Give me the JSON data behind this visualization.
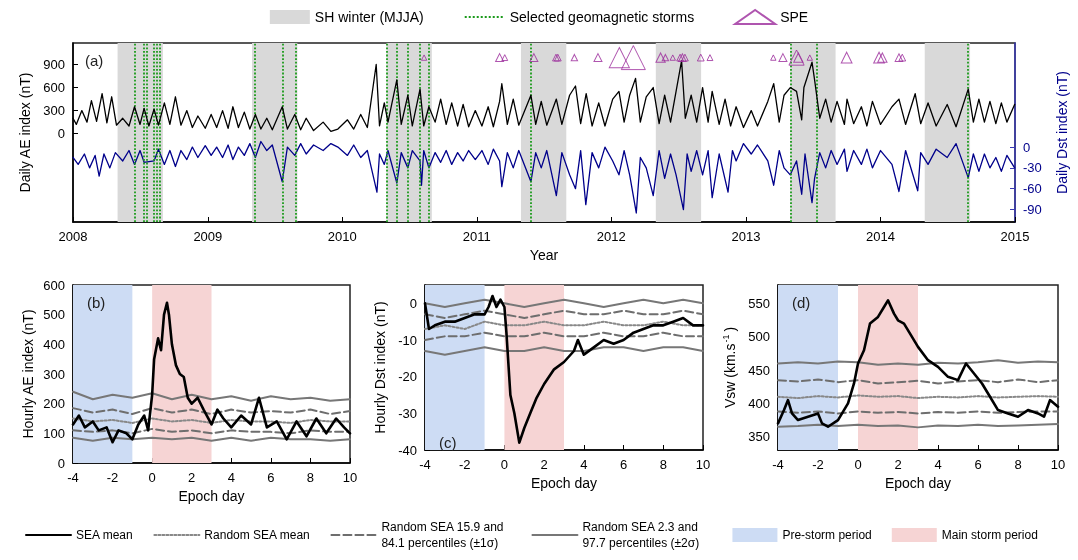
{
  "chart_data": [
    {
      "type": "line",
      "xlabel": "Year",
      "ylabel": "Daily AE index (nT)",
      "y2label": "Daily Dst index (nT)",
      "annotations": [
        "(a)"
      ],
      "xlim": [
        "2008",
        "2015"
      ],
      "xticks": [
        "2008",
        "2009",
        "2010",
        "2011",
        "2012",
        "2013",
        "2014",
        "2015"
      ],
      "ylim": [
        -1150,
        1180
      ],
      "yticks": [
        0,
        300,
        600,
        900
      ],
      "y2lim": [
        -108,
        150
      ],
      "y2ticks": [
        -90,
        -60,
        -30,
        0
      ],
      "grid": false,
      "legend": "top",
      "marker": "none",
      "line_style": "solid",
      "bands": [
        {
          "axis": "x",
          "from": "2008-05-01",
          "to": "2008-09-01",
          "label": "SH winter (MJJA)",
          "color": "#d9d9d9"
        },
        {
          "axis": "x",
          "from": "2009-05-01",
          "to": "2009-09-01",
          "color": "#d9d9d9"
        },
        {
          "axis": "x",
          "from": "2010-05-01",
          "to": "2010-09-01",
          "color": "#d9d9d9"
        },
        {
          "axis": "x",
          "from": "2011-05-01",
          "to": "2011-09-01",
          "color": "#d9d9d9"
        },
        {
          "axis": "x",
          "from": "2012-05-01",
          "to": "2012-09-01",
          "color": "#d9d9d9"
        },
        {
          "axis": "x",
          "from": "2013-05-01",
          "to": "2013-09-01",
          "color": "#d9d9d9"
        },
        {
          "axis": "x",
          "from": "2014-05-01",
          "to": "2014-09-01",
          "color": "#d9d9d9"
        }
      ],
      "ref_lines": [
        {
          "axis": "x",
          "value": "2008-06-16",
          "label": "Selected geomagnetic storms",
          "color": "#1a9a1a",
          "line_style": "dotted"
        },
        {
          "axis": "x",
          "value": "2008-07-12",
          "color": "#1a9a1a",
          "line_style": "dotted"
        },
        {
          "axis": "x",
          "value": "2008-07-20",
          "color": "#1a9a1a",
          "line_style": "dotted"
        },
        {
          "axis": "x",
          "value": "2008-08-08",
          "color": "#1a9a1a",
          "line_style": "dotted"
        },
        {
          "axis": "x",
          "value": "2008-08-16",
          "color": "#1a9a1a",
          "line_style": "dotted"
        },
        {
          "axis": "x",
          "value": "2008-08-23",
          "color": "#1a9a1a",
          "line_style": "dotted"
        },
        {
          "axis": "x",
          "value": "2009-05-07",
          "color": "#1a9a1a",
          "line_style": "dotted"
        },
        {
          "axis": "x",
          "value": "2009-07-22",
          "color": "#1a9a1a",
          "line_style": "dotted"
        },
        {
          "axis": "x",
          "value": "2009-08-28",
          "color": "#1a9a1a",
          "line_style": "dotted"
        },
        {
          "axis": "x",
          "value": "2010-05-02",
          "color": "#1a9a1a",
          "line_style": "dotted"
        },
        {
          "axis": "x",
          "value": "2010-05-28",
          "color": "#1a9a1a",
          "line_style": "dotted"
        },
        {
          "axis": "x",
          "value": "2010-06-28",
          "color": "#1a9a1a",
          "line_style": "dotted"
        },
        {
          "axis": "x",
          "value": "2010-07-31",
          "color": "#1a9a1a",
          "line_style": "dotted"
        },
        {
          "axis": "x",
          "value": "2010-08-24",
          "color": "#1a9a1a",
          "line_style": "dotted"
        },
        {
          "axis": "x",
          "value": "2011-05-28",
          "color": "#1a9a1a",
          "line_style": "dotted"
        },
        {
          "axis": "x",
          "value": "2013-05-01",
          "color": "#1a9a1a",
          "line_style": "dotted"
        },
        {
          "axis": "x",
          "value": "2013-07-13",
          "color": "#1a9a1a",
          "line_style": "dotted"
        },
        {
          "axis": "x",
          "value": "2014-08-27",
          "color": "#1a9a1a",
          "line_style": "dotted"
        }
      ],
      "series": [
        {
          "color": "#000000",
          "x": [
            "2008-01-01",
            "2008-01-10",
            "2008-01-25",
            "2008-02-08",
            "2008-02-20",
            "2008-03-05",
            "2008-03-20",
            "2008-04-02",
            "2008-04-15",
            "2008-04-28",
            "2008-05-15",
            "2008-06-01",
            "2008-06-16",
            "2008-07-01",
            "2008-07-12",
            "2008-07-25",
            "2008-08-08",
            "2008-08-20",
            "2008-09-05",
            "2008-09-20",
            "2008-10-05",
            "2008-10-20",
            "2008-11-05",
            "2008-11-20",
            "2008-12-05",
            "2008-12-25",
            "2009-01-10",
            "2009-01-25",
            "2009-02-10",
            "2009-02-25",
            "2009-03-10",
            "2009-03-25",
            "2009-04-10",
            "2009-04-25",
            "2009-05-10",
            "2009-05-25",
            "2009-06-10",
            "2009-06-25",
            "2009-07-22",
            "2009-08-05",
            "2009-08-25",
            "2009-09-10",
            "2009-09-25",
            "2009-10-15",
            "2009-11-10",
            "2009-12-01",
            "2009-12-20",
            "2010-01-15",
            "2010-02-01",
            "2010-02-20",
            "2010-03-10",
            "2010-04-03",
            "2010-04-12",
            "2010-04-25",
            "2010-05-05",
            "2010-05-29",
            "2010-06-10",
            "2010-06-28",
            "2010-07-10",
            "2010-07-31",
            "2010-08-10",
            "2010-08-24",
            "2010-09-10",
            "2010-09-25",
            "2010-10-10",
            "2010-10-25",
            "2010-11-10",
            "2010-11-25",
            "2010-12-10",
            "2010-12-28",
            "2011-01-15",
            "2011-02-01",
            "2011-02-15",
            "2011-03-04",
            "2011-03-10",
            "2011-03-25",
            "2011-04-10",
            "2011-04-25",
            "2011-05-28",
            "2011-06-10",
            "2011-06-25",
            "2011-07-10",
            "2011-08-05",
            "2011-08-20",
            "2011-09-10",
            "2011-09-26",
            "2011-10-10",
            "2011-10-25",
            "2011-11-10",
            "2011-11-28",
            "2011-12-15",
            "2012-01-05",
            "2012-01-22",
            "2012-02-05",
            "2012-02-20",
            "2012-03-07",
            "2012-03-20",
            "2012-04-05",
            "2012-04-24",
            "2012-05-10",
            "2012-05-25",
            "2012-06-10",
            "2012-06-25",
            "2012-07-10",
            "2012-07-20",
            "2012-08-05",
            "2012-08-20",
            "2012-09-05",
            "2012-09-20",
            "2012-10-01",
            "2012-10-20",
            "2012-11-05",
            "2012-11-20",
            "2012-12-05",
            "2012-12-25",
            "2013-01-15",
            "2013-02-01",
            "2013-03-01",
            "2013-03-17",
            "2013-04-01",
            "2013-04-14",
            "2013-05-01",
            "2013-05-18",
            "2013-06-01",
            "2013-06-07",
            "2013-06-29",
            "2013-07-06",
            "2013-07-20",
            "2013-08-05",
            "2013-08-20",
            "2013-09-05",
            "2013-09-25",
            "2013-10-02",
            "2013-10-20",
            "2013-11-10",
            "2013-11-25",
            "2013-12-10",
            "2014-01-01",
            "2014-02-01",
            "2014-02-20",
            "2014-03-10",
            "2014-04-05",
            "2014-04-20",
            "2014-05-10",
            "2014-06-01",
            "2014-07-01",
            "2014-07-25",
            "2014-08-27",
            "2014-09-10",
            "2014-09-25",
            "2014-10-10",
            "2014-10-25",
            "2014-11-10",
            "2014-11-25",
            "2014-12-10",
            "2014-12-31"
          ],
          "values": [
            200,
            120,
            300,
            150,
            430,
            160,
            520,
            140,
            480,
            110,
            200,
            100,
            350,
            120,
            330,
            100,
            320,
            110,
            400,
            120,
            480,
            110,
            300,
            80,
            230,
            70,
            250,
            80,
            300,
            70,
            350,
            80,
            280,
            60,
            250,
            60,
            200,
            50,
            350,
            60,
            250,
            50,
            200,
            40,
            150,
            30,
            60,
            180,
            60,
            250,
            80,
            900,
            100,
            400,
            150,
            700,
            120,
            500,
            100,
            580,
            100,
            350,
            150,
            450,
            120,
            400,
            100,
            380,
            90,
            300,
            100,
            350,
            90,
            420,
            650,
            120,
            450,
            110,
            500,
            120,
            420,
            110,
            450,
            120,
            500,
            620,
            130,
            520,
            100,
            400,
            100,
            450,
            550,
            150,
            500,
            720,
            150,
            480,
            600,
            130,
            500,
            150,
            550,
            950,
            200,
            500,
            150,
            600,
            150,
            550,
            120,
            450,
            100,
            350,
            80,
            300,
            100,
            420,
            650,
            150,
            500,
            600,
            550,
            180,
            600,
            930,
            700,
            200,
            450,
            150,
            420,
            120,
            450,
            130,
            350,
            100,
            420,
            120,
            350,
            450,
            120,
            520,
            130,
            400,
            100,
            380,
            90,
            580,
            150,
            450,
            150,
            420,
            130,
            400,
            150,
            380
          ]
        },
        {
          "color": "#00008b",
          "axis": "y2",
          "x": [
            "2008-01-01",
            "2008-01-15",
            "2008-02-01",
            "2008-02-15",
            "2008-03-01",
            "2008-03-12",
            "2008-03-25",
            "2008-04-10",
            "2008-04-25",
            "2008-05-15",
            "2008-06-01",
            "2008-06-16",
            "2008-07-01",
            "2008-07-12",
            "2008-08-08",
            "2008-08-20",
            "2008-09-05",
            "2008-09-20",
            "2008-10-05",
            "2008-10-20",
            "2008-11-05",
            "2008-11-20",
            "2008-12-05",
            "2008-12-25",
            "2009-01-10",
            "2009-01-25",
            "2009-02-10",
            "2009-02-25",
            "2009-03-10",
            "2009-03-25",
            "2009-04-10",
            "2009-04-25",
            "2009-05-10",
            "2009-05-25",
            "2009-06-10",
            "2009-06-25",
            "2009-07-22",
            "2009-08-05",
            "2009-08-25",
            "2009-09-10",
            "2009-09-25",
            "2009-10-15",
            "2009-11-10",
            "2009-12-01",
            "2009-12-20",
            "2010-01-15",
            "2010-02-01",
            "2010-02-20",
            "2010-03-10",
            "2010-04-05",
            "2010-04-12",
            "2010-04-25",
            "2010-05-05",
            "2010-05-29",
            "2010-06-10",
            "2010-06-28",
            "2010-07-10",
            "2010-07-31",
            "2010-08-04",
            "2010-08-10",
            "2010-08-24",
            "2010-09-10",
            "2010-09-25",
            "2010-10-10",
            "2010-10-25",
            "2010-11-10",
            "2010-11-25",
            "2010-12-10",
            "2010-12-28",
            "2011-01-15",
            "2011-02-01",
            "2011-02-15",
            "2011-03-04",
            "2011-03-10",
            "2011-03-25",
            "2011-04-10",
            "2011-04-25",
            "2011-05-28",
            "2011-06-10",
            "2011-06-25",
            "2011-07-10",
            "2011-08-05",
            "2011-08-20",
            "2011-09-10",
            "2011-09-26",
            "2011-10-10",
            "2011-10-24",
            "2011-11-10",
            "2011-11-28",
            "2011-12-15",
            "2012-01-05",
            "2012-01-22",
            "2012-02-05",
            "2012-02-20",
            "2012-03-09",
            "2012-03-20",
            "2012-04-05",
            "2012-04-24",
            "2012-05-10",
            "2012-05-25",
            "2012-06-10",
            "2012-06-25",
            "2012-07-15",
            "2012-07-25",
            "2012-08-05",
            "2012-08-20",
            "2012-09-05",
            "2012-09-20",
            "2012-10-01",
            "2012-10-20",
            "2012-11-13",
            "2012-11-25",
            "2012-12-05",
            "2012-12-25",
            "2013-01-15",
            "2013-02-01",
            "2013-03-01",
            "2013-03-17",
            "2013-04-01",
            "2013-04-14",
            "2013-05-01",
            "2013-05-18",
            "2013-06-01",
            "2013-06-10",
            "2013-06-29",
            "2013-07-06",
            "2013-07-20",
            "2013-08-05",
            "2013-08-20",
            "2013-09-05",
            "2013-09-25",
            "2013-10-02",
            "2013-10-20",
            "2013-11-10",
            "2013-11-25",
            "2013-12-10",
            "2014-01-01",
            "2014-02-01",
            "2014-02-20",
            "2014-03-10",
            "2014-04-12",
            "2014-04-20",
            "2014-05-10",
            "2014-06-01",
            "2014-07-01",
            "2014-07-25",
            "2014-08-27",
            "2014-09-10",
            "2014-09-25",
            "2014-10-10",
            "2014-10-25",
            "2014-11-10",
            "2014-11-25",
            "2014-12-10",
            "2014-12-31"
          ],
          "values": [
            -15,
            -25,
            -10,
            -30,
            -12,
            -42,
            -10,
            -30,
            -8,
            -20,
            -5,
            -25,
            -5,
            -22,
            -20,
            -3,
            -25,
            -5,
            -28,
            -5,
            -18,
            0,
            -15,
            2,
            -12,
            0,
            -15,
            3,
            -18,
            0,
            -12,
            5,
            -15,
            8,
            -5,
            3,
            -50,
            0,
            -12,
            5,
            -10,
            3,
            -5,
            5,
            0,
            -12,
            3,
            -15,
            -5,
            -65,
            -10,
            -25,
            -5,
            -52,
            -8,
            -30,
            -5,
            -20,
            -55,
            -5,
            -30,
            -8,
            -22,
            -5,
            -25,
            -8,
            -20,
            -5,
            -18,
            -5,
            -25,
            -3,
            -20,
            -57,
            -8,
            -30,
            -5,
            -50,
            -8,
            -30,
            -5,
            -70,
            -8,
            -40,
            -60,
            -5,
            -83,
            -8,
            -30,
            0,
            -20,
            -40,
            -5,
            -40,
            -95,
            -15,
            -30,
            -70,
            -5,
            -45,
            -10,
            -40,
            -90,
            -10,
            -35,
            -5,
            -40,
            -5,
            -73,
            -10,
            -65,
            -5,
            -20,
            5,
            -10,
            3,
            -20,
            -55,
            -5,
            -30,
            -40,
            -20,
            -68,
            -10,
            -80,
            -45,
            -8,
            -30,
            -5,
            -25,
            -3,
            -35,
            -5,
            -25,
            -3,
            -30,
            -5,
            -25,
            -64,
            -5,
            -63,
            -8,
            -25,
            -3,
            -15,
            5,
            -44,
            -10,
            -35,
            -10,
            -30,
            -15,
            -35,
            -12,
            -30
          ]
        },
        {
          "name": "SPE",
          "type": "bubble",
          "marker": "triangle",
          "color": "#9b2a9b",
          "x": [
            "2010-08-11",
            "2011-03-04",
            "2011-03-18",
            "2011-06-05",
            "2011-08-04",
            "2011-08-09",
            "2011-09-23",
            "2011-11-26",
            "2012-01-23",
            "2012-03-01",
            "2012-05-14",
            "2012-05-27",
            "2012-06-16",
            "2012-07-06",
            "2012-07-12",
            "2012-07-19",
            "2012-08-31",
            "2012-09-25",
            "2013-03-16",
            "2013-04-11",
            "2013-05-18",
            "2013-05-23",
            "2013-06-23",
            "2013-10-01",
            "2013-12-28",
            "2014-01-06",
            "2014-02-20",
            "2014-03-01"
          ],
          "values": [
            990,
            990,
            990,
            990,
            990,
            990,
            990,
            990,
            990,
            990,
            990,
            990,
            990,
            990,
            990,
            990,
            990,
            990,
            990,
            990,
            990,
            990,
            990,
            990,
            990,
            990,
            990,
            990
          ],
          "sizes": [
            0.05,
            0.11,
            0.06,
            0.11,
            0.08,
            0.08,
            0.07,
            0.11,
            0.7,
            1,
            0.15,
            0.07,
            0.05,
            0.08,
            0.1,
            0.08,
            0.08,
            0.06,
            0.05,
            0.11,
            0.4,
            0.15,
            0.05,
            0.2,
            0.2,
            0.15,
            0.1,
            0.08
          ]
        }
      ]
    },
    {
      "type": "line",
      "xlabel": "Epoch day",
      "ylabel": "Hourly AE index (nT)",
      "annotations": [
        "(b)"
      ],
      "xlim": [
        -4,
        10
      ],
      "xticks": [
        -4,
        -2,
        0,
        2,
        4,
        6,
        8,
        10
      ],
      "ylim": [
        0,
        600
      ],
      "yticks": [
        0,
        100,
        200,
        300,
        400,
        500,
        600
      ],
      "grid": false,
      "legend": "bottom",
      "marker": "none",
      "x": [
        -4,
        -3,
        -2,
        -1,
        0,
        1,
        2,
        3,
        4,
        5,
        6,
        7,
        8,
        9,
        10
      ],
      "bands": [
        {
          "axis": "x",
          "from": -4,
          "to": -1,
          "label": "Pre-storm period",
          "color": "#cddcf4"
        },
        {
          "axis": "x",
          "from": 0,
          "to": 3,
          "label": "Main storm period",
          "color": "#f6d4d4"
        }
      ],
      "series": [
        {
          "name": "SEA mean",
          "color": "#000000",
          "line_style": "solid",
          "x": [
            -4,
            -3.7,
            -3.4,
            -3,
            -2.7,
            -2.3,
            -2,
            -1.7,
            -1.3,
            -1,
            -0.7,
            -0.4,
            -0.2,
            0,
            0.1,
            0.3,
            0.45,
            0.6,
            0.75,
            0.85,
            1,
            1.2,
            1.4,
            1.6,
            1.8,
            2,
            2.3,
            2.6,
            3,
            3.3,
            3.6,
            4,
            4.5,
            5,
            5.4,
            5.8,
            6.3,
            6.8,
            7.3,
            7.8,
            8.3,
            8.8,
            9.3,
            9.7,
            10
          ],
          "values": [
            130,
            160,
            120,
            140,
            110,
            120,
            70,
            110,
            100,
            80,
            130,
            160,
            110,
            230,
            350,
            420,
            380,
            500,
            540,
            500,
            400,
            330,
            300,
            290,
            220,
            200,
            220,
            180,
            130,
            180,
            150,
            120,
            160,
            130,
            220,
            120,
            140,
            80,
            140,
            90,
            150,
            100,
            150,
            120,
            100
          ]
        },
        {
          "name": "Random SEA mean",
          "color": "#888888",
          "line_style": "dotted",
          "values": [
            150,
            140,
            145,
            135,
            150,
            140,
            145,
            135,
            145,
            140,
            140,
            135,
            145,
            140,
            140
          ]
        },
        {
          "name": "Random SEA 15.9 and 84.1 percentiles (±1σ)",
          "color": "#6e6e6e",
          "line_style": "dashed",
          "values": [
            185,
            170,
            180,
            165,
            185,
            170,
            180,
            165,
            180,
            170,
            175,
            170,
            180,
            165,
            175
          ]
        },
        {
          "color": "#6e6e6e",
          "line_style": "dashed",
          "values": [
            110,
            105,
            110,
            100,
            115,
            105,
            110,
            100,
            110,
            105,
            105,
            100,
            110,
            105,
            105
          ]
        },
        {
          "name": "Random SEA 2.3 and 97.7 percentiles (±2σ)",
          "color": "#777777",
          "line_style": "solid",
          "values": [
            240,
            215,
            230,
            220,
            235,
            215,
            230,
            215,
            225,
            210,
            225,
            215,
            220,
            210,
            215
          ]
        },
        {
          "color": "#777777",
          "line_style": "solid",
          "values": [
            85,
            75,
            85,
            80,
            85,
            80,
            85,
            75,
            85,
            75,
            85,
            80,
            80,
            75,
            80
          ]
        }
      ]
    },
    {
      "type": "line",
      "xlabel": "Epoch day",
      "ylabel": "Hourly Dst index (nT)",
      "annotations": [
        "(c)"
      ],
      "xlim": [
        -4,
        10
      ],
      "xticks": [
        -4,
        -2,
        0,
        2,
        4,
        6,
        8,
        10
      ],
      "ylim": [
        -40,
        5
      ],
      "yticks": [
        -40,
        -30,
        -20,
        -10,
        0
      ],
      "grid": false,
      "marker": "none",
      "x": [
        -4,
        -3,
        -2,
        -1,
        0,
        1,
        2,
        3,
        4,
        5,
        6,
        7,
        8,
        9,
        10
      ],
      "bands": [
        {
          "axis": "x",
          "from": -4,
          "to": -1,
          "color": "#cddcf4"
        },
        {
          "axis": "x",
          "from": 0,
          "to": 3,
          "color": "#f6d4d4"
        }
      ],
      "series": [
        {
          "color": "#000000",
          "line_style": "solid",
          "x": [
            -4,
            -3.8,
            -3.5,
            -3,
            -2.5,
            -2,
            -1.5,
            -1,
            -0.8,
            -0.6,
            -0.4,
            -0.2,
            0,
            0.1,
            0.3,
            0.5,
            0.75,
            1,
            1.3,
            1.6,
            2,
            2.5,
            3,
            3.5,
            3.7,
            4,
            4.5,
            5,
            5.5,
            6,
            6.5,
            7,
            7.5,
            8,
            8.5,
            9,
            9.5,
            10
          ],
          "values": [
            0,
            -7,
            -6,
            -5,
            -5,
            -4,
            -3,
            -3,
            -1,
            2,
            -1,
            1,
            -1,
            -8,
            -25,
            -30,
            -38,
            -34,
            -30,
            -26,
            -22,
            -18,
            -16,
            -13,
            -10,
            -14,
            -12,
            -10,
            -11,
            -10,
            -8,
            -7,
            -6,
            -6,
            -5,
            -4,
            -6,
            -6
          ]
        },
        {
          "color": "#888888",
          "line_style": "dotted",
          "values": [
            -7,
            -6,
            -7,
            -5,
            -6,
            -6,
            -5,
            -6,
            -6,
            -5,
            -6,
            -6,
            -5,
            -6,
            -6
          ]
        },
        {
          "color": "#6e6e6e",
          "line_style": "dashed",
          "values": [
            -3,
            -4,
            -3,
            -2,
            -3,
            -4,
            -3,
            -2,
            -3,
            -3,
            -2,
            -3,
            -3,
            -2,
            -3
          ]
        },
        {
          "color": "#6e6e6e",
          "line_style": "dashed",
          "values": [
            -10,
            -9,
            -9,
            -8,
            -9,
            -9,
            -8,
            -9,
            -9,
            -8,
            -9,
            -9,
            -8,
            -9,
            -9
          ]
        },
        {
          "color": "#777777",
          "line_style": "solid",
          "values": [
            0,
            -1,
            0,
            1,
            0,
            -1,
            0,
            1,
            0,
            -1,
            0,
            1,
            0,
            1,
            0
          ]
        },
        {
          "color": "#777777",
          "line_style": "solid",
          "values": [
            -13,
            -14,
            -13,
            -12,
            -13,
            -13,
            -12,
            -13,
            -13,
            -12,
            -12,
            -13,
            -12,
            -12,
            -13
          ]
        }
      ]
    },
    {
      "type": "line",
      "xlabel": "Epoch day",
      "ylabel": "Vsw (km.s$^{-1}$)",
      "annotations": [
        "(d)"
      ],
      "xlim": [
        -4,
        10
      ],
      "xticks": [
        -4,
        -2,
        0,
        2,
        4,
        6,
        8,
        10
      ],
      "ylim": [
        330,
        578
      ],
      "yticks": [
        350,
        400,
        450,
        500,
        550
      ],
      "grid": false,
      "marker": "none",
      "x": [
        -4,
        -3,
        -2,
        -1,
        0,
        1,
        2,
        3,
        4,
        5,
        6,
        7,
        8,
        9,
        10
      ],
      "bands": [
        {
          "axis": "x",
          "from": -4,
          "to": -1,
          "color": "#cddcf4"
        },
        {
          "axis": "x",
          "from": 0,
          "to": 3,
          "color": "#f6d4d4"
        }
      ],
      "series": [
        {
          "color": "#000000",
          "line_style": "solid",
          "x": [
            -4,
            -3.7,
            -3.5,
            -3.3,
            -3,
            -2.5,
            -2,
            -1.8,
            -1.5,
            -1,
            -0.5,
            -0.2,
            0,
            0.3,
            0.6,
            1,
            1.3,
            1.5,
            1.8,
            2,
            2.3,
            2.7,
            3,
            3.5,
            4,
            4.5,
            5,
            5.4,
            5.8,
            6.2,
            6.6,
            7,
            7.5,
            8,
            8.5,
            9,
            9.3,
            9.6,
            10
          ],
          "values": [
            370,
            390,
            405,
            385,
            375,
            380,
            385,
            370,
            365,
            375,
            400,
            430,
            460,
            480,
            520,
            530,
            545,
            555,
            535,
            525,
            520,
            500,
            485,
            465,
            455,
            440,
            435,
            460,
            445,
            430,
            410,
            390,
            385,
            380,
            390,
            385,
            380,
            405,
            395
          ]
        },
        {
          "color": "#888888",
          "line_style": "dotted",
          "values": [
            410,
            408,
            411,
            409,
            412,
            410,
            411,
            408,
            410,
            409,
            411,
            409,
            410,
            411,
            410
          ]
        },
        {
          "color": "#6e6e6e",
          "line_style": "dashed",
          "values": [
            435,
            433,
            436,
            432,
            435,
            430,
            432,
            434,
            430,
            433,
            435,
            432,
            436,
            432,
            435
          ]
        },
        {
          "color": "#6e6e6e",
          "line_style": "dashed",
          "values": [
            388,
            386,
            388,
            385,
            388,
            386,
            387,
            385,
            387,
            386,
            388,
            386,
            387,
            388,
            388
          ]
        },
        {
          "color": "#777777",
          "line_style": "solid",
          "values": [
            460,
            462,
            460,
            463,
            462,
            458,
            460,
            458,
            461,
            460,
            462,
            465,
            461,
            463,
            462
          ]
        },
        {
          "color": "#777777",
          "line_style": "solid",
          "values": [
            365,
            366,
            368,
            366,
            368,
            366,
            367,
            364,
            367,
            366,
            368,
            366,
            367,
            368,
            369
          ]
        }
      ]
    }
  ]
}
